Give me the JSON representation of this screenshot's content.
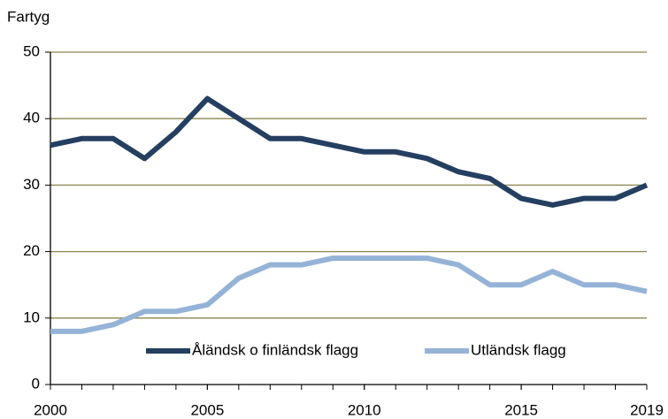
{
  "chart_data": {
    "type": "line",
    "y_label": "Fartyg",
    "x": [
      2000,
      2001,
      2002,
      2003,
      2004,
      2005,
      2006,
      2007,
      2008,
      2009,
      2010,
      2011,
      2012,
      2013,
      2014,
      2015,
      2016,
      2017,
      2018,
      2019
    ],
    "series": [
      {
        "name": "Åländsk o finländsk flagg",
        "color": "#243f60",
        "values": [
          36,
          37,
          37,
          34,
          38,
          43,
          40,
          37,
          37,
          36,
          35,
          35,
          34,
          32,
          31,
          28,
          27,
          28,
          28,
          30
        ]
      },
      {
        "name": "Utländsk flagg",
        "color": "#95b3d7",
        "values": [
          8,
          8,
          9,
          11,
          11,
          12,
          16,
          18,
          18,
          19,
          19,
          19,
          19,
          18,
          15,
          15,
          17,
          15,
          15,
          14
        ]
      }
    ],
    "xlim": [
      2000,
      2019
    ],
    "xticks": [
      2000,
      2005,
      2010,
      2015,
      2019
    ],
    "ylim": [
      0,
      50
    ],
    "yticks": [
      0,
      10,
      20,
      30,
      40,
      50
    ],
    "grid": true,
    "grid_color": "#8c8450",
    "legend": "lower center"
  }
}
